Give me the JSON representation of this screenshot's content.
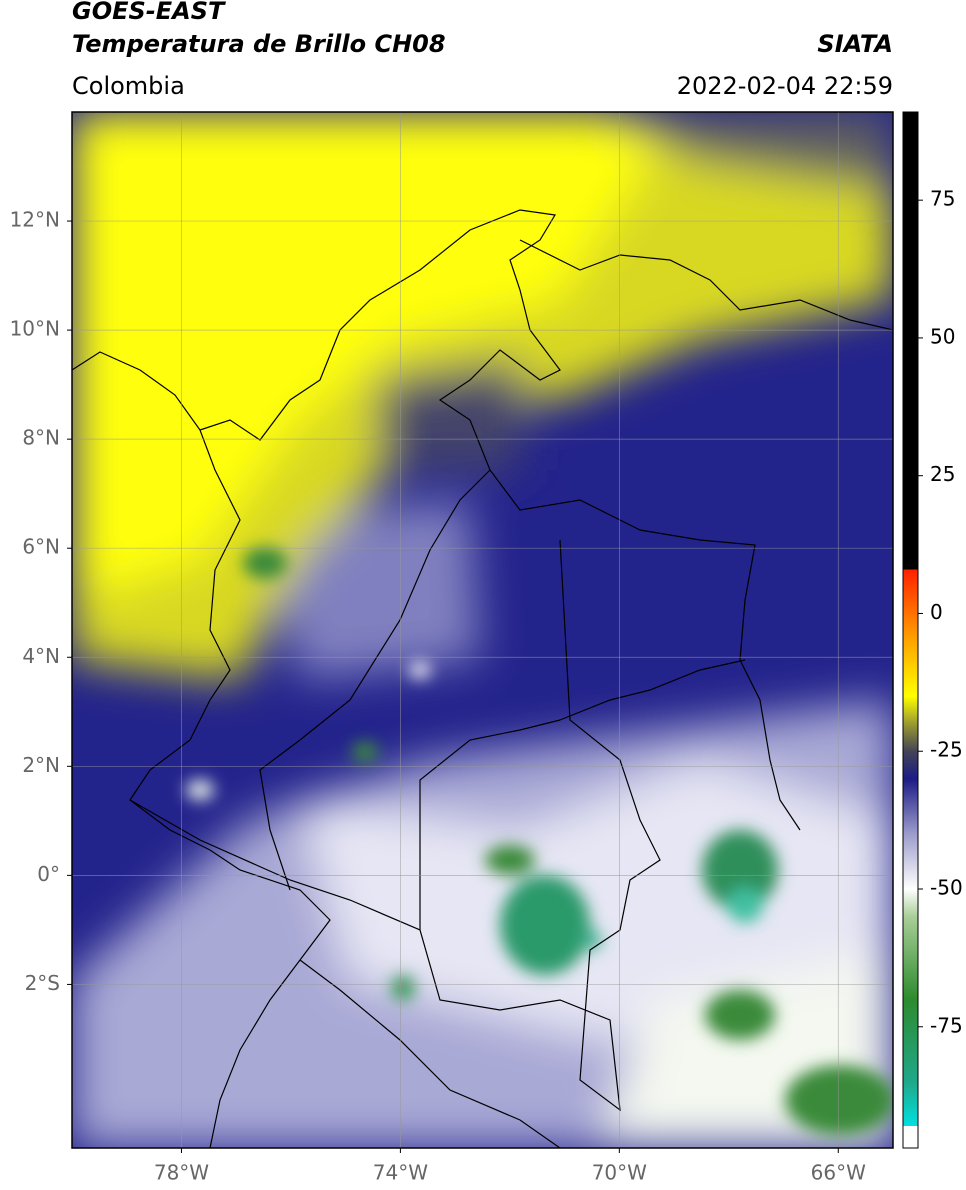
{
  "header": {
    "title": "GOES-EAST",
    "subtitle": "Temperatura de Brillo CH08",
    "source": "SIATA",
    "region": "Colombia",
    "datetime": "2022-02-04 22:59"
  },
  "map": {
    "lonlim": [
      -80,
      -65
    ],
    "latlim": [
      -5,
      14
    ],
    "grid": true,
    "lonticks": [
      {
        "value": -78,
        "label": "78°W"
      },
      {
        "value": -74,
        "label": "74°W"
      },
      {
        "value": -70,
        "label": "70°W"
      },
      {
        "value": -66,
        "label": "66°W"
      }
    ],
    "latticks": [
      {
        "value": 12,
        "label": "12°N"
      },
      {
        "value": 10,
        "label": "10°N"
      },
      {
        "value": 8,
        "label": "8°N"
      },
      {
        "value": 6,
        "label": "6°N"
      },
      {
        "value": 4,
        "label": "4°N"
      },
      {
        "value": 2,
        "label": "2°N"
      },
      {
        "value": 0,
        "label": "0°"
      },
      {
        "value": -2,
        "label": "2°S"
      }
    ]
  },
  "colorbar": {
    "lim": [
      -97,
      91
    ],
    "ticks": [
      75,
      50,
      25,
      0,
      -25,
      -50,
      -75
    ],
    "stops": [
      {
        "value": -97,
        "color": "#ffffff"
      },
      {
        "value": -93,
        "color": "#ffffff"
      },
      {
        "value": -93,
        "color": "#00e0e0"
      },
      {
        "value": -85,
        "color": "#1fa88a"
      },
      {
        "value": -70,
        "color": "#2e8b2e"
      },
      {
        "value": -55,
        "color": "#a8cf98"
      },
      {
        "value": -50,
        "color": "#ffffff"
      },
      {
        "value": -40,
        "color": "#9c9ccc"
      },
      {
        "value": -30,
        "color": "#1c1c86"
      },
      {
        "value": -25,
        "color": "#444455"
      },
      {
        "value": -20,
        "color": "#9a9a30"
      },
      {
        "value": -15,
        "color": "#ffff00"
      },
      {
        "value": -5,
        "color": "#ffa500"
      },
      {
        "value": 8,
        "color": "#ff2000"
      },
      {
        "value": 8,
        "color": "#000000"
      },
      {
        "value": 91,
        "color": "#000000"
      }
    ]
  }
}
